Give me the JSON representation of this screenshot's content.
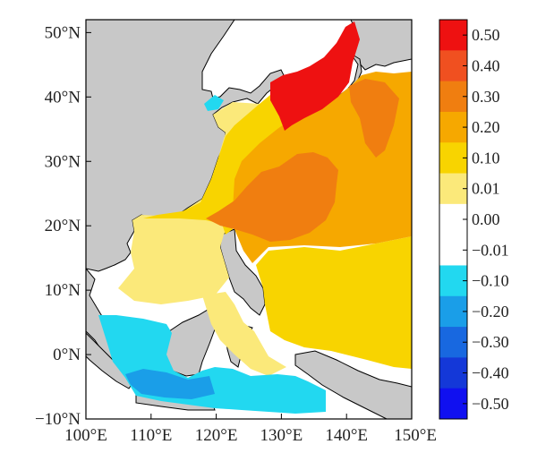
{
  "map": {
    "lon_range": [
      100,
      150
    ],
    "lat_range": [
      -10,
      52
    ],
    "land_color": "#c8c8c8",
    "ocean_missing_color": "#ffffff"
  },
  "lon_ticks": [
    "100°E",
    "110°E",
    "120°E",
    "130°E",
    "140°E",
    "150°E"
  ],
  "lat_ticks": [
    "50°N",
    "40°N",
    "30°N",
    "20°N",
    "10°N",
    "0°N",
    "−10°N"
  ],
  "colorbar": {
    "labels": [
      "0.50",
      "0.40",
      "0.30",
      "0.20",
      "0.10",
      "0.01",
      "0.00",
      "−0.01",
      "−0.10",
      "−0.20",
      "−0.30",
      "−0.40",
      "−0.50"
    ],
    "colors": [
      "#ee1111",
      "#f05020",
      "#f07e10",
      "#f6a800",
      "#f8d400",
      "#fbe97a",
      "#ffffff",
      "#ffffff",
      "#22d8f0",
      "#1a9ee8",
      "#1868e0",
      "#1438d8",
      "#1010f0"
    ]
  }
}
